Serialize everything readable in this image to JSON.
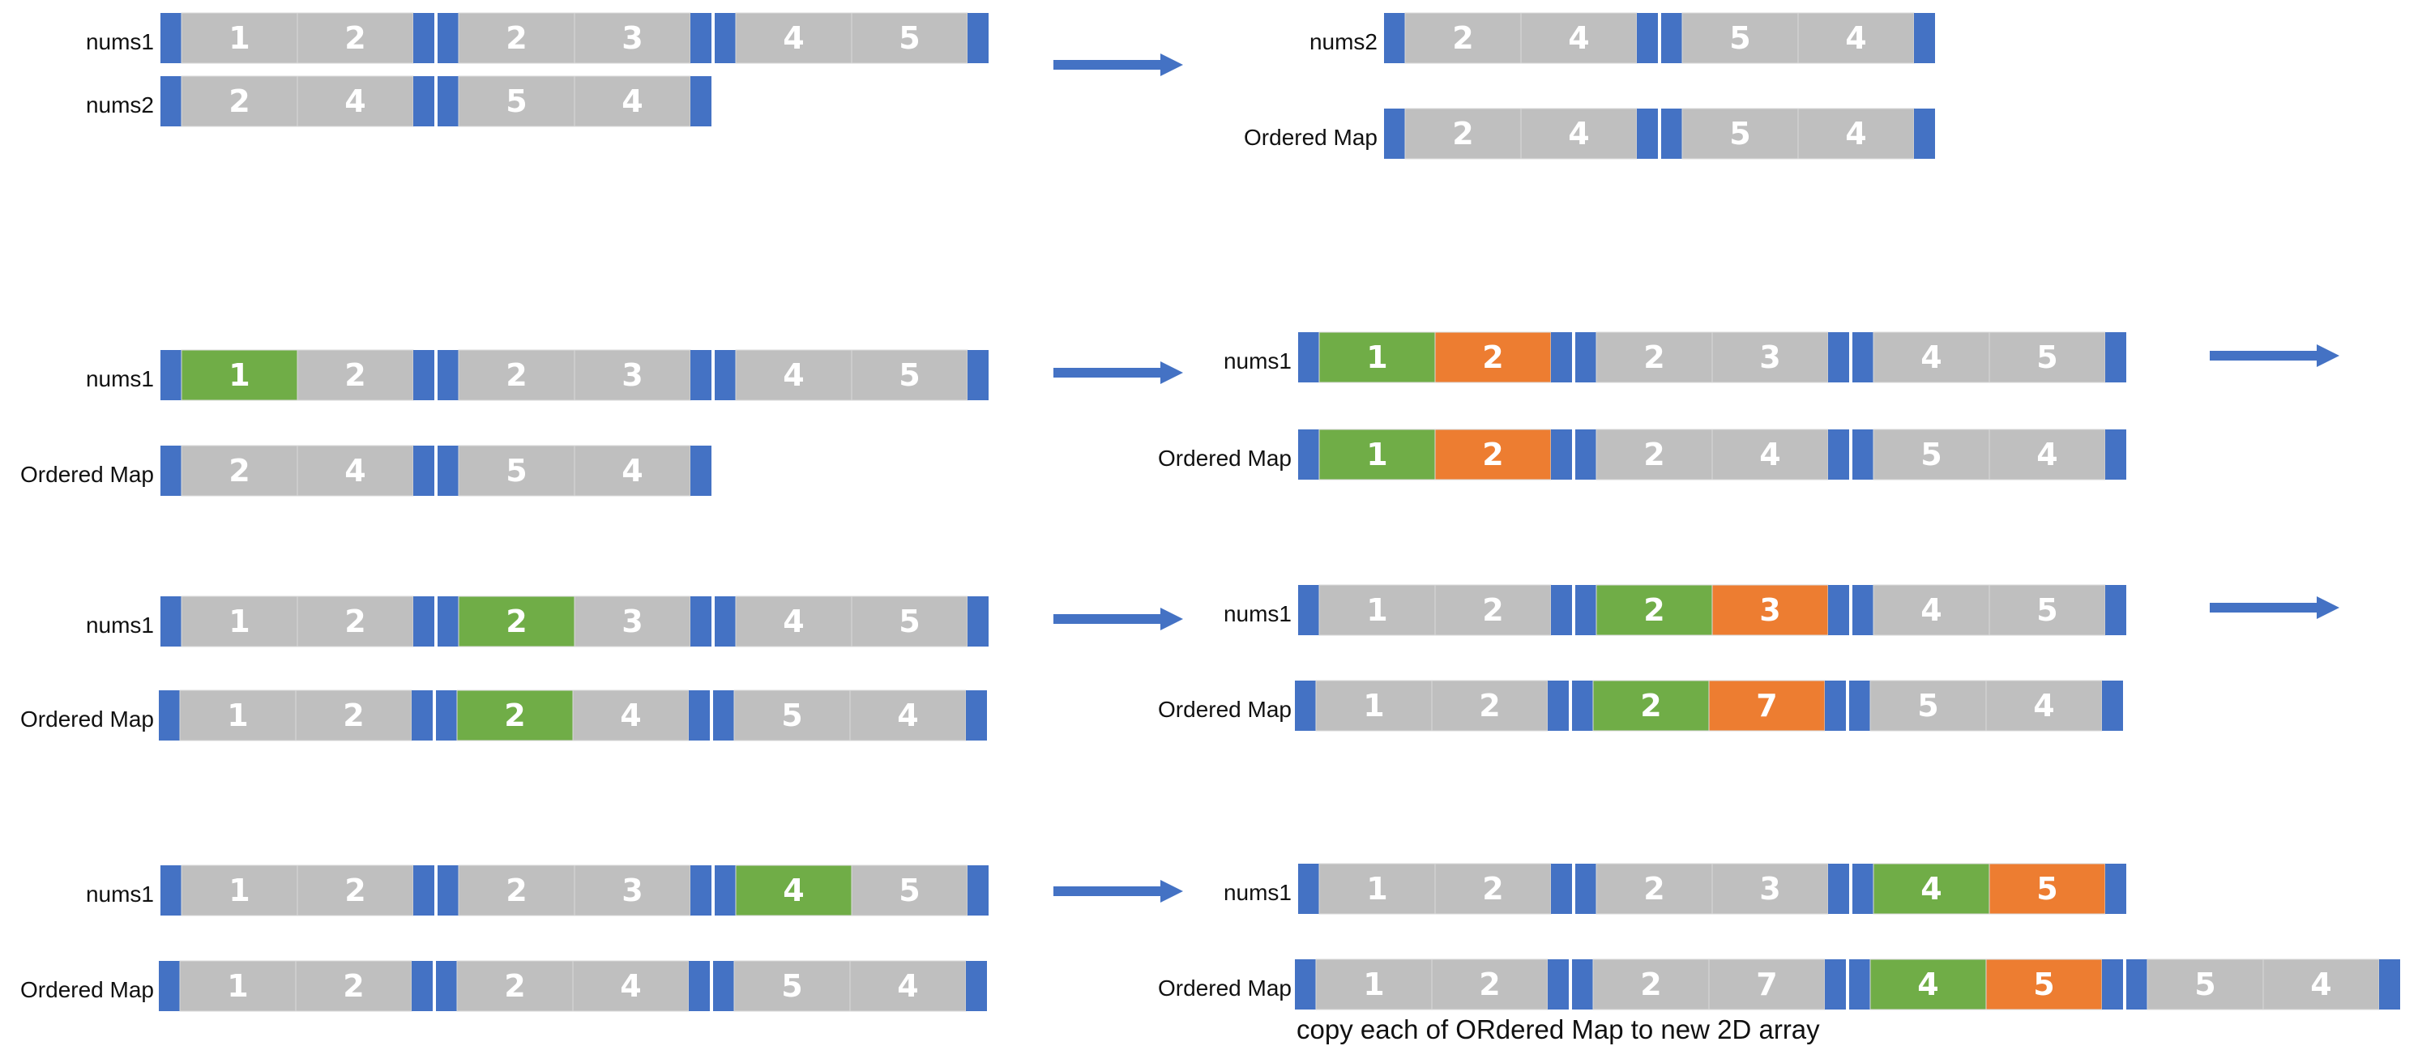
{
  "colors": {
    "border": "#4472c4",
    "cell": "#bfbfbf",
    "cell_text": "#ffffff",
    "highlight_green": "#70ad47",
    "highlight_orange": "#ed7d31",
    "arrow": "#4472c4"
  },
  "rows": [
    {
      "label": "nums1",
      "groups": [
        [
          {
            "v": "1"
          },
          {
            "v": "2"
          }
        ],
        [
          {
            "v": "2"
          },
          {
            "v": "3"
          }
        ],
        [
          {
            "v": "4"
          },
          {
            "v": "5"
          }
        ]
      ]
    },
    {
      "label": "nums2",
      "groups": [
        [
          {
            "v": "2"
          },
          {
            "v": "4"
          }
        ],
        [
          {
            "v": "5"
          },
          {
            "v": "4"
          }
        ]
      ]
    },
    {
      "label": "nums2",
      "groups": [
        [
          {
            "v": "2"
          },
          {
            "v": "4"
          }
        ],
        [
          {
            "v": "5"
          },
          {
            "v": "4"
          }
        ]
      ]
    },
    {
      "label": "Ordered Map",
      "groups": [
        [
          {
            "v": "2"
          },
          {
            "v": "4"
          }
        ],
        [
          {
            "v": "5"
          },
          {
            "v": "4"
          }
        ]
      ]
    },
    {
      "label": "nums1",
      "groups": [
        [
          {
            "v": "1",
            "c": "green"
          },
          {
            "v": "2"
          }
        ],
        [
          {
            "v": "2"
          },
          {
            "v": "3"
          }
        ],
        [
          {
            "v": "4"
          },
          {
            "v": "5"
          }
        ]
      ]
    },
    {
      "label": "Ordered Map",
      "groups": [
        [
          {
            "v": "2"
          },
          {
            "v": "4"
          }
        ],
        [
          {
            "v": "5"
          },
          {
            "v": "4"
          }
        ]
      ]
    },
    {
      "label": "nums1",
      "groups": [
        [
          {
            "v": "1",
            "c": "green"
          },
          {
            "v": "2",
            "c": "orange"
          }
        ],
        [
          {
            "v": "2"
          },
          {
            "v": "3"
          }
        ],
        [
          {
            "v": "4"
          },
          {
            "v": "5"
          }
        ]
      ]
    },
    {
      "label": "Ordered Map",
      "groups": [
        [
          {
            "v": "1",
            "c": "green"
          },
          {
            "v": "2",
            "c": "orange"
          }
        ],
        [
          {
            "v": "2"
          },
          {
            "v": "4"
          }
        ],
        [
          {
            "v": "5"
          },
          {
            "v": "4"
          }
        ]
      ]
    },
    {
      "label": "nums1",
      "groups": [
        [
          {
            "v": "1"
          },
          {
            "v": "2"
          }
        ],
        [
          {
            "v": "2",
            "c": "green"
          },
          {
            "v": "3"
          }
        ],
        [
          {
            "v": "4"
          },
          {
            "v": "5"
          }
        ]
      ]
    },
    {
      "label": "Ordered Map",
      "groups": [
        [
          {
            "v": "1"
          },
          {
            "v": "2"
          }
        ],
        [
          {
            "v": "2",
            "c": "green"
          },
          {
            "v": "4"
          }
        ],
        [
          {
            "v": "5"
          },
          {
            "v": "4"
          }
        ]
      ]
    },
    {
      "label": "nums1",
      "groups": [
        [
          {
            "v": "1"
          },
          {
            "v": "2"
          }
        ],
        [
          {
            "v": "2",
            "c": "green"
          },
          {
            "v": "3",
            "c": "orange"
          }
        ],
        [
          {
            "v": "4"
          },
          {
            "v": "5"
          }
        ]
      ]
    },
    {
      "label": "Ordered Map",
      "groups": [
        [
          {
            "v": "1"
          },
          {
            "v": "2"
          }
        ],
        [
          {
            "v": "2",
            "c": "green"
          },
          {
            "v": "7",
            "c": "orange"
          }
        ],
        [
          {
            "v": "5"
          },
          {
            "v": "4"
          }
        ]
      ]
    },
    {
      "label": "nums1",
      "groups": [
        [
          {
            "v": "1"
          },
          {
            "v": "2"
          }
        ],
        [
          {
            "v": "2"
          },
          {
            "v": "3"
          }
        ],
        [
          {
            "v": "4",
            "c": "green"
          },
          {
            "v": "5"
          }
        ]
      ]
    },
    {
      "label": "Ordered Map",
      "groups": [
        [
          {
            "v": "1"
          },
          {
            "v": "2"
          }
        ],
        [
          {
            "v": "2"
          },
          {
            "v": "4"
          }
        ],
        [
          {
            "v": "5"
          },
          {
            "v": "4"
          }
        ]
      ]
    },
    {
      "label": "nums1",
      "groups": [
        [
          {
            "v": "1"
          },
          {
            "v": "2"
          }
        ],
        [
          {
            "v": "2"
          },
          {
            "v": "3"
          }
        ],
        [
          {
            "v": "4",
            "c": "green"
          },
          {
            "v": "5",
            "c": "orange"
          }
        ]
      ]
    },
    {
      "label": "Ordered Map",
      "groups": [
        [
          {
            "v": "1"
          },
          {
            "v": "2"
          }
        ],
        [
          {
            "v": "2"
          },
          {
            "v": "7"
          }
        ],
        [
          {
            "v": "4",
            "c": "green"
          },
          {
            "v": "5",
            "c": "orange"
          }
        ],
        [
          {
            "v": "5"
          },
          {
            "v": "4"
          }
        ]
      ]
    }
  ],
  "caption": "copy each of ORdered Map to new 2D array"
}
